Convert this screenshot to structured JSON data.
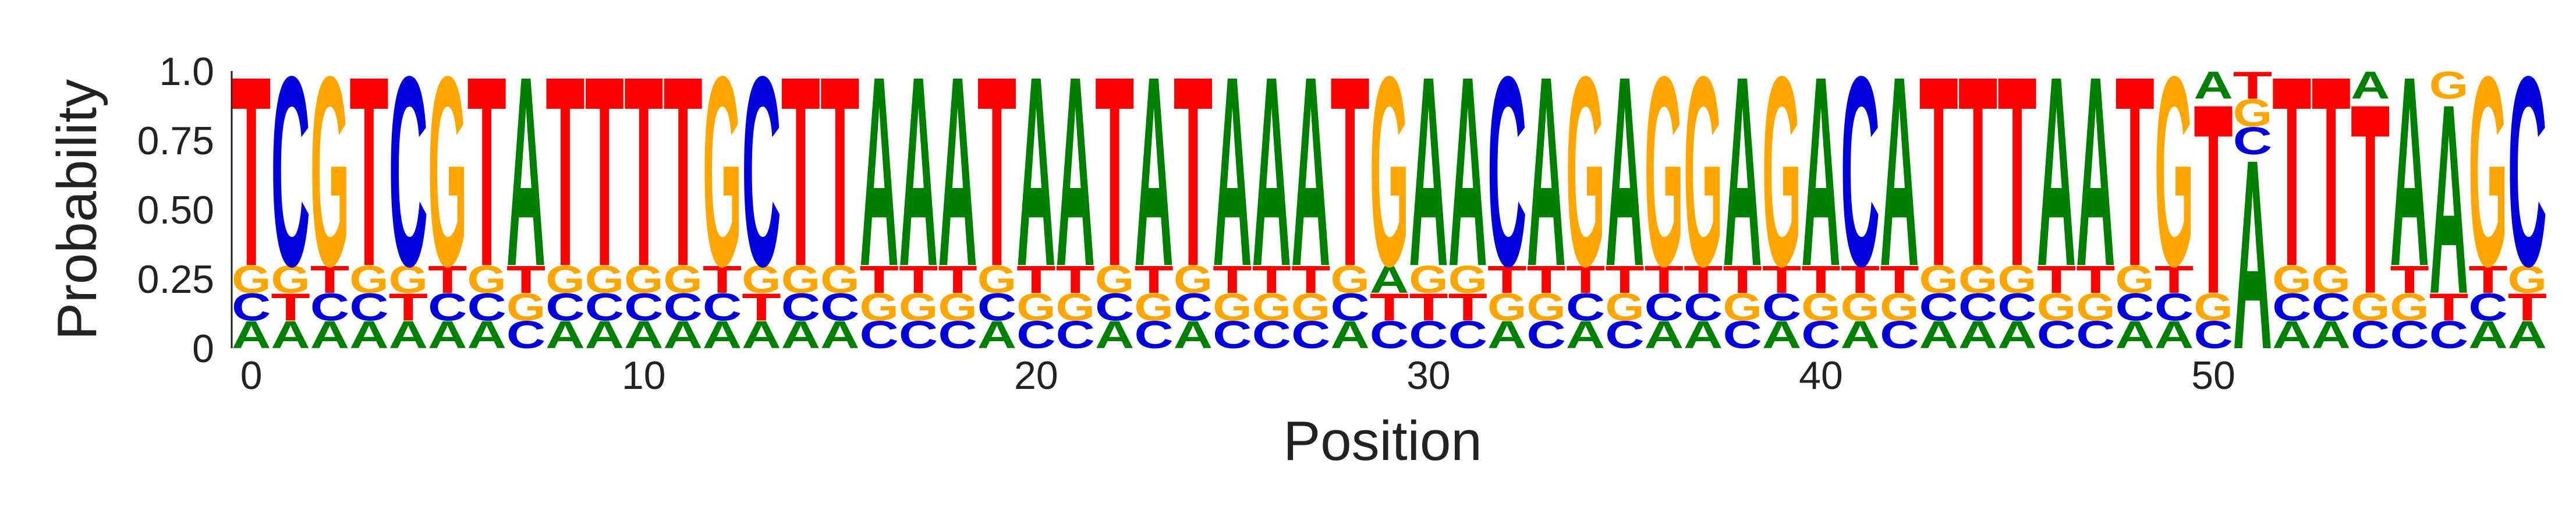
{
  "chart_data": {
    "type": "sequence-logo",
    "xlabel": "Position",
    "ylabel": "Probability",
    "ylim": [
      0,
      1.0
    ],
    "x_ticks": [
      0,
      10,
      20,
      30,
      40,
      50
    ],
    "x_tick_labels": [
      "0",
      "10",
      "20",
      "30",
      "40",
      "50"
    ],
    "y_ticks": [
      0,
      0.25,
      0.5,
      0.75,
      1.0
    ],
    "y_tick_labels": [
      "0",
      "0.25",
      "0.50",
      "0.75",
      "1.0"
    ],
    "colors": {
      "A": "#008000",
      "C": "#0000dd",
      "G": "#ffa500",
      "T": "#ff0000"
    },
    "consensus": "TCGTCGTATTTTGCTTAAATAATATAAATGAACAGAGGAGACATTTAATGTATTTAAGC",
    "minor_probability": 0.1,
    "stack_orders": [
      "ACGT",
      "ATGC",
      "ACTG",
      "ACGT",
      "ATGC",
      "ACTG",
      "ACGT",
      "CGTA",
      "ACGT",
      "ACGT",
      "ACGT",
      "ACGT",
      "ACTG",
      "ATGC",
      "ACGT",
      "ACGT",
      "CGTA",
      "CGTA",
      "CGTA",
      "ACGT",
      "CGTA",
      "CGTA",
      "ACGT",
      "CGTA",
      "ACGT",
      "CGTA",
      "CGTA",
      "CGTA",
      "ACGT",
      "CTAG",
      "CTGA",
      "CTGA",
      "AGTC",
      "CGTA",
      "ACTG",
      "CGTA",
      "ACTG",
      "ACTG",
      "CGTA",
      "ACTG",
      "CGTA",
      "AGTC",
      "CGTA",
      "ACGT",
      "ACGT",
      "ACGT",
      "CGTA",
      "CGTA",
      "ACGT",
      "ACTG",
      "CGTA",
      "ACGT",
      "ACGT",
      "ACGT",
      "CGTA",
      "CGTA",
      "CTAG",
      "ACTG",
      "ATGC"
    ]
  }
}
